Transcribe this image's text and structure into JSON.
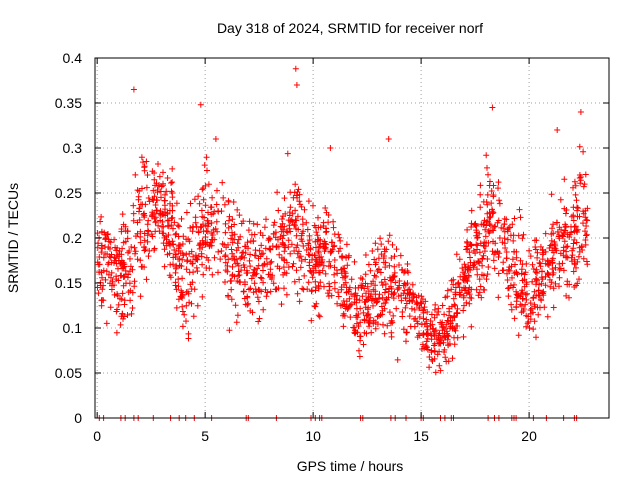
{
  "chart_data": {
    "type": "scatter",
    "title": "Day 318 of 2024, SRMTID for receiver norf",
    "xlabel": "GPS time / hours",
    "ylabel": "SRMTID / TECUs",
    "xlim": [
      -0.1,
      23.7
    ],
    "ylim": [
      0,
      0.4
    ],
    "x_ticks": [
      0,
      5,
      10,
      15,
      20
    ],
    "x_tick_labels": [
      "0",
      "5",
      "10",
      "15",
      "20"
    ],
    "y_ticks": [
      0,
      0.05,
      0.1,
      0.15,
      0.2,
      0.25,
      0.3,
      0.35,
      0.4
    ],
    "y_tick_labels": [
      "0",
      "0.05",
      "0.1",
      "0.15",
      "0.2",
      "0.25",
      "0.3",
      "0.35",
      "0.4"
    ],
    "grid": true,
    "marker": "plus",
    "series": [
      {
        "name": "SRMTID",
        "color": "#ff0000",
        "profile_x": [
          0,
          0.3,
          0.6,
          1.0,
          1.5,
          2.0,
          2.5,
          3.0,
          3.5,
          4.0,
          4.5,
          5.0,
          5.5,
          6.0,
          6.5,
          7.0,
          7.5,
          8.0,
          8.5,
          9.0,
          9.5,
          10.0,
          10.5,
          11.0,
          11.5,
          12.0,
          12.5,
          13.0,
          13.5,
          14.0,
          14.5,
          15.0,
          15.5,
          16.0,
          16.5,
          17.0,
          17.5,
          18.0,
          18.5,
          19.0,
          19.5,
          20.0,
          20.5,
          21.0,
          21.5,
          22.0,
          22.5,
          22.7
        ],
        "profile_mean": [
          0.17,
          0.19,
          0.17,
          0.16,
          0.17,
          0.22,
          0.24,
          0.23,
          0.2,
          0.16,
          0.18,
          0.22,
          0.21,
          0.18,
          0.17,
          0.17,
          0.16,
          0.17,
          0.2,
          0.22,
          0.19,
          0.17,
          0.19,
          0.17,
          0.14,
          0.12,
          0.13,
          0.15,
          0.14,
          0.15,
          0.13,
          0.11,
          0.09,
          0.09,
          0.11,
          0.15,
          0.19,
          0.22,
          0.21,
          0.18,
          0.16,
          0.14,
          0.15,
          0.18,
          0.19,
          0.2,
          0.22,
          0.22
        ],
        "profile_spread": [
          0.05,
          0.06,
          0.04,
          0.05,
          0.06,
          0.07,
          0.05,
          0.05,
          0.05,
          0.05,
          0.06,
          0.06,
          0.05,
          0.05,
          0.05,
          0.05,
          0.05,
          0.05,
          0.06,
          0.07,
          0.05,
          0.05,
          0.05,
          0.05,
          0.04,
          0.04,
          0.04,
          0.05,
          0.05,
          0.05,
          0.04,
          0.03,
          0.03,
          0.03,
          0.04,
          0.05,
          0.06,
          0.07,
          0.06,
          0.05,
          0.05,
          0.04,
          0.05,
          0.05,
          0.06,
          0.06,
          0.06,
          0.06
        ],
        "n_points": 1900,
        "peaks": [
          {
            "x": 1.7,
            "y": 0.365
          },
          {
            "x": 4.8,
            "y": 0.348
          },
          {
            "x": 9.2,
            "y": 0.388
          },
          {
            "x": 9.25,
            "y": 0.37
          },
          {
            "x": 18.3,
            "y": 0.345
          },
          {
            "x": 22.4,
            "y": 0.34
          },
          {
            "x": 21.3,
            "y": 0.32
          },
          {
            "x": 10.8,
            "y": 0.3
          },
          {
            "x": 13.5,
            "y": 0.31
          },
          {
            "x": 5.5,
            "y": 0.31
          }
        ],
        "zero_points_x": [
          0.1,
          0.3,
          1.1,
          1.3,
          1.7,
          1.9,
          2.6,
          3.4,
          3.8,
          4.1,
          4.5,
          5.3,
          6.9,
          7.0,
          8.3,
          9.9,
          10.1,
          10.3,
          10.4,
          12.2,
          12.3,
          13.6,
          13.8,
          14.3,
          15.0,
          15.1,
          15.9,
          16.1,
          16.4,
          16.5,
          18.1,
          18.4,
          18.6,
          19.2,
          19.3,
          19.4,
          20.2,
          20.8,
          21.6,
          22.1,
          22.2
        ]
      }
    ]
  }
}
